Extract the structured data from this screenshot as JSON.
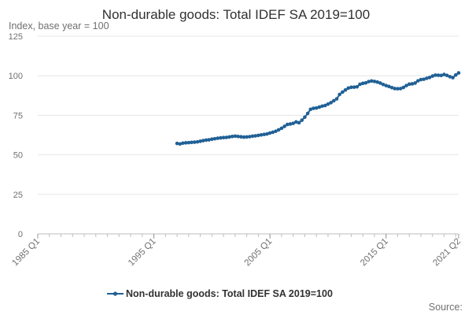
{
  "chart_data": {
    "type": "line",
    "title": "Non-durable goods: Total IDEF SA 2019=100",
    "subtitle": "Index, base year = 100",
    "source_label": "Source:",
    "color": "#206095",
    "grid": true,
    "legend_position": "bottom",
    "x_ticks": [
      "1985 Q1",
      "1995 Q1",
      "2005 Q1",
      "2015 Q1",
      "2021 Q2"
    ],
    "y_ticks": [
      0,
      25,
      50,
      75,
      100,
      125
    ],
    "ylim": [
      0,
      125
    ],
    "xlim": [
      "1985 Q1",
      "2021 Q2"
    ],
    "series": [
      {
        "name": "Non-durable goods: Total IDEF SA 2019=100",
        "points": [
          [
            "1997 Q1",
            57.2
          ],
          [
            "1997 Q2",
            56.9
          ],
          [
            "1997 Q3",
            57.4
          ],
          [
            "1997 Q4",
            57.6
          ],
          [
            "1998 Q1",
            57.7
          ],
          [
            "1998 Q2",
            57.9
          ],
          [
            "1998 Q3",
            58.0
          ],
          [
            "1998 Q4",
            58.2
          ],
          [
            "1999 Q1",
            58.6
          ],
          [
            "1999 Q2",
            59.0
          ],
          [
            "1999 Q3",
            59.3
          ],
          [
            "1999 Q4",
            59.5
          ],
          [
            "2000 Q1",
            59.9
          ],
          [
            "2000 Q2",
            60.2
          ],
          [
            "2000 Q3",
            60.5
          ],
          [
            "2000 Q4",
            60.7
          ],
          [
            "2001 Q1",
            60.9
          ],
          [
            "2001 Q2",
            61.0
          ],
          [
            "2001 Q3",
            61.3
          ],
          [
            "2001 Q4",
            61.6
          ],
          [
            "2002 Q1",
            61.8
          ],
          [
            "2002 Q2",
            61.6
          ],
          [
            "2002 Q3",
            61.4
          ],
          [
            "2002 Q4",
            61.2
          ],
          [
            "2003 Q1",
            61.3
          ],
          [
            "2003 Q2",
            61.5
          ],
          [
            "2003 Q3",
            61.8
          ],
          [
            "2003 Q4",
            62.0
          ],
          [
            "2004 Q1",
            62.3
          ],
          [
            "2004 Q2",
            62.6
          ],
          [
            "2004 Q3",
            62.9
          ],
          [
            "2004 Q4",
            63.2
          ],
          [
            "2005 Q1",
            63.8
          ],
          [
            "2005 Q2",
            64.3
          ],
          [
            "2005 Q3",
            64.9
          ],
          [
            "2005 Q4",
            65.8
          ],
          [
            "2006 Q1",
            66.8
          ],
          [
            "2006 Q2",
            68.0
          ],
          [
            "2006 Q3",
            69.2
          ],
          [
            "2006 Q4",
            69.5
          ],
          [
            "2007 Q1",
            69.9
          ],
          [
            "2007 Q2",
            70.8
          ],
          [
            "2007 Q3",
            70.3
          ],
          [
            "2007 Q4",
            71.9
          ],
          [
            "2008 Q1",
            73.8
          ],
          [
            "2008 Q2",
            76.2
          ],
          [
            "2008 Q3",
            78.8
          ],
          [
            "2008 Q4",
            79.4
          ],
          [
            "2009 Q1",
            79.6
          ],
          [
            "2009 Q2",
            80.2
          ],
          [
            "2009 Q3",
            80.8
          ],
          [
            "2009 Q4",
            81.2
          ],
          [
            "2010 Q1",
            82.1
          ],
          [
            "2010 Q2",
            83.0
          ],
          [
            "2010 Q3",
            84.2
          ],
          [
            "2010 Q4",
            85.4
          ],
          [
            "2011 Q1",
            88.2
          ],
          [
            "2011 Q2",
            89.7
          ],
          [
            "2011 Q3",
            91.0
          ],
          [
            "2011 Q4",
            92.2
          ],
          [
            "2012 Q1",
            92.7
          ],
          [
            "2012 Q2",
            92.8
          ],
          [
            "2012 Q3",
            93.0
          ],
          [
            "2012 Q4",
            94.6
          ],
          [
            "2013 Q1",
            95.2
          ],
          [
            "2013 Q2",
            95.5
          ],
          [
            "2013 Q3",
            96.3
          ],
          [
            "2013 Q4",
            96.7
          ],
          [
            "2014 Q1",
            96.4
          ],
          [
            "2014 Q2",
            96.0
          ],
          [
            "2014 Q3",
            95.4
          ],
          [
            "2014 Q4",
            94.5
          ],
          [
            "2015 Q1",
            93.8
          ],
          [
            "2015 Q2",
            93.2
          ],
          [
            "2015 Q3",
            92.5
          ],
          [
            "2015 Q4",
            91.9
          ],
          [
            "2016 Q1",
            91.8
          ],
          [
            "2016 Q2",
            91.9
          ],
          [
            "2016 Q3",
            92.6
          ],
          [
            "2016 Q4",
            93.8
          ],
          [
            "2017 Q1",
            94.7
          ],
          [
            "2017 Q2",
            94.9
          ],
          [
            "2017 Q3",
            95.4
          ],
          [
            "2017 Q4",
            96.8
          ],
          [
            "2018 Q1",
            97.6
          ],
          [
            "2018 Q2",
            97.8
          ],
          [
            "2018 Q3",
            98.4
          ],
          [
            "2018 Q4",
            98.9
          ],
          [
            "2019 Q1",
            99.8
          ],
          [
            "2019 Q2",
            100.4
          ],
          [
            "2019 Q3",
            100.3
          ],
          [
            "2019 Q4",
            100.2
          ],
          [
            "2020 Q1",
            100.8
          ],
          [
            "2020 Q2",
            100.2
          ],
          [
            "2020 Q3",
            99.4
          ],
          [
            "2020 Q4",
            98.8
          ],
          [
            "2021 Q1",
            100.5
          ],
          [
            "2021 Q2",
            101.8
          ]
        ]
      }
    ]
  }
}
